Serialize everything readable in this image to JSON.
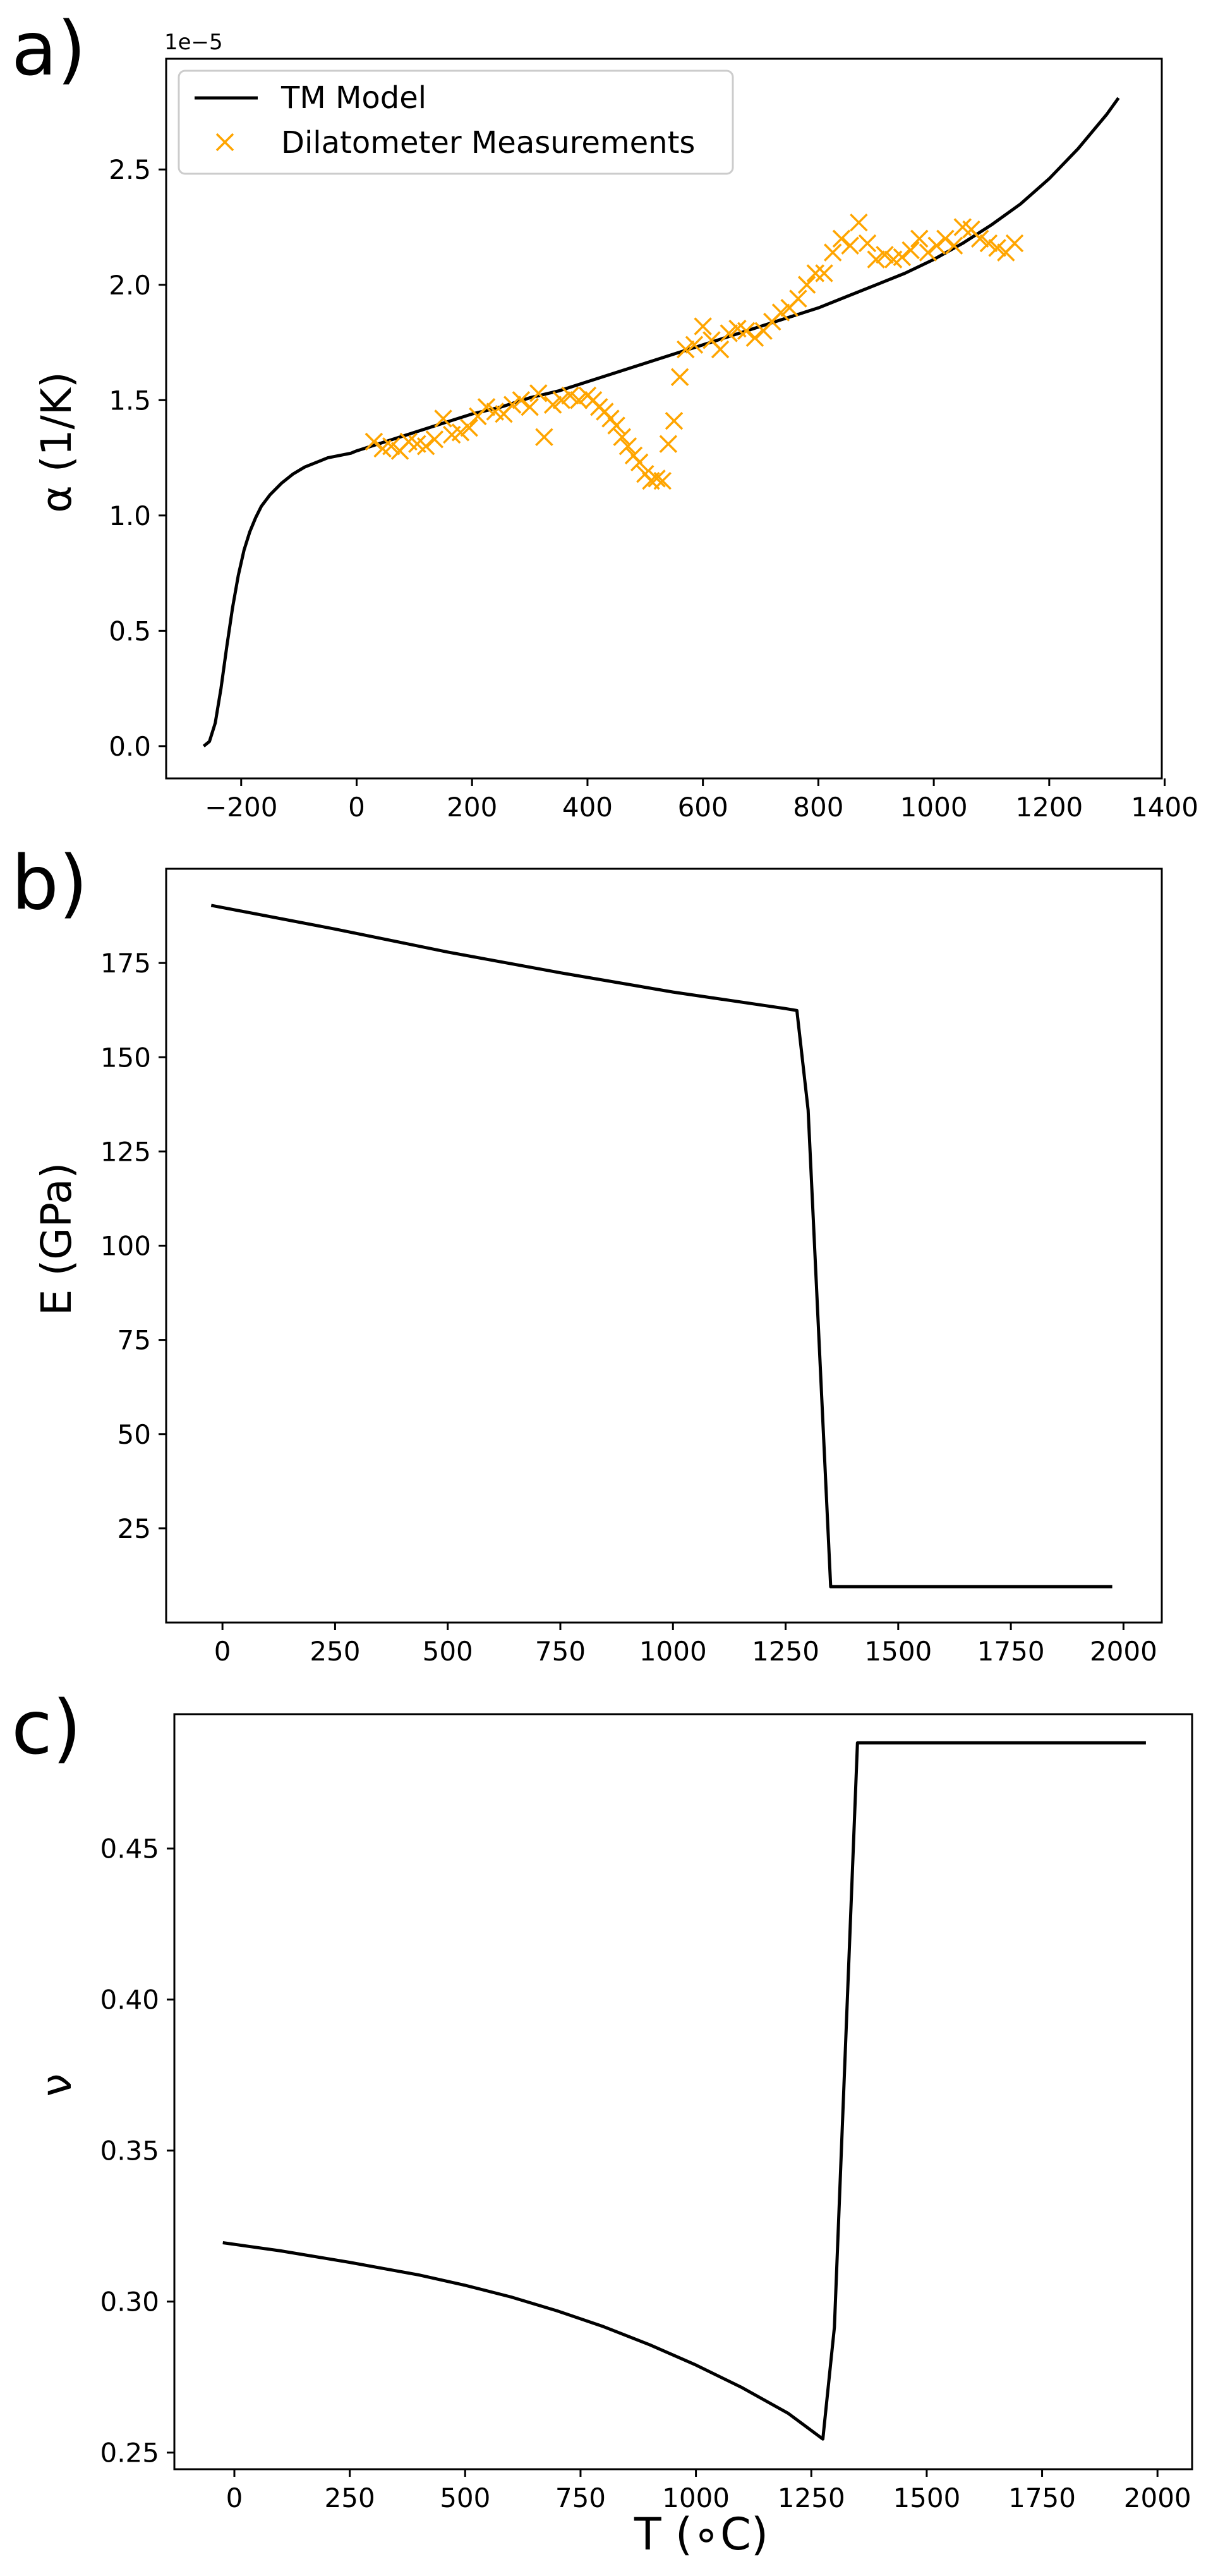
{
  "colors": {
    "line": "#000000",
    "markers": "#FFA500",
    "frame": "#000000",
    "background": "#ffffff"
  },
  "chart_data": [
    {
      "type": "line",
      "panel_label": "a)",
      "ylabel": "α (1/K)",
      "xlabel": "",
      "offset_text": "1e−5",
      "grid": false,
      "legend_location": "upper-left",
      "xlim": [
        -330,
        1395
      ],
      "ylim": [
        -0.14,
        2.98
      ],
      "xticks": [
        -200,
        0,
        200,
        400,
        600,
        800,
        1000,
        1200,
        1400
      ],
      "xtick_labels": [
        "−200",
        "0",
        "200",
        "400",
        "600",
        "800",
        "1000",
        "1200",
        "1400"
      ],
      "yticks": [
        0.0,
        0.5,
        1.0,
        1.5,
        2.0,
        2.5
      ],
      "ytick_labels": [
        "0.0",
        "0.5",
        "1.0",
        "1.5",
        "2.0",
        "2.5"
      ],
      "series": [
        {
          "name": "TM Model",
          "kind": "line",
          "x": [
            -265,
            -255,
            -245,
            -235,
            -225,
            -215,
            -205,
            -195,
            -185,
            -175,
            -165,
            -150,
            -130,
            -110,
            -90,
            -70,
            -50,
            -30,
            -10,
            0,
            50,
            100,
            150,
            200,
            250,
            300,
            350,
            400,
            450,
            500,
            550,
            600,
            650,
            700,
            750,
            800,
            850,
            900,
            950,
            1000,
            1050,
            1100,
            1150,
            1200,
            1250,
            1300,
            1320
          ],
          "y": [
            0.0,
            0.02,
            0.1,
            0.25,
            0.43,
            0.6,
            0.74,
            0.85,
            0.93,
            0.99,
            1.04,
            1.09,
            1.14,
            1.18,
            1.21,
            1.23,
            1.25,
            1.26,
            1.27,
            1.28,
            1.32,
            1.36,
            1.4,
            1.44,
            1.47,
            1.51,
            1.54,
            1.58,
            1.62,
            1.66,
            1.7,
            1.74,
            1.78,
            1.82,
            1.86,
            1.9,
            1.95,
            2.0,
            2.05,
            2.11,
            2.18,
            2.26,
            2.35,
            2.46,
            2.59,
            2.74,
            2.81
          ]
        },
        {
          "name": "Dilatometer Measurements",
          "kind": "scatter",
          "x": [
            30,
            45,
            60,
            75,
            90,
            105,
            120,
            135,
            150,
            165,
            180,
            195,
            210,
            225,
            240,
            255,
            270,
            285,
            300,
            315,
            325,
            340,
            355,
            370,
            385,
            400,
            410,
            420,
            430,
            440,
            450,
            460,
            470,
            480,
            490,
            500,
            510,
            520,
            530,
            540,
            550,
            560,
            570,
            585,
            600,
            615,
            630,
            645,
            660,
            675,
            690,
            705,
            720,
            735,
            750,
            765,
            780,
            795,
            810,
            825,
            840,
            855,
            870,
            885,
            900,
            915,
            930,
            945,
            960,
            975,
            990,
            1005,
            1020,
            1035,
            1050,
            1065,
            1080,
            1095,
            1110,
            1125,
            1140
          ],
          "y": [
            1.32,
            1.29,
            1.3,
            1.28,
            1.32,
            1.31,
            1.3,
            1.33,
            1.42,
            1.35,
            1.36,
            1.38,
            1.43,
            1.47,
            1.45,
            1.44,
            1.48,
            1.5,
            1.47,
            1.53,
            1.34,
            1.48,
            1.5,
            1.52,
            1.5,
            1.52,
            1.5,
            1.47,
            1.45,
            1.42,
            1.39,
            1.34,
            1.3,
            1.26,
            1.23,
            1.18,
            1.15,
            1.16,
            1.15,
            1.31,
            1.41,
            1.6,
            1.72,
            1.74,
            1.82,
            1.76,
            1.72,
            1.79,
            1.81,
            1.8,
            1.77,
            1.8,
            1.84,
            1.88,
            1.9,
            1.94,
            2.0,
            2.05,
            2.05,
            2.14,
            2.2,
            2.17,
            2.27,
            2.18,
            2.11,
            2.13,
            2.11,
            2.12,
            2.15,
            2.2,
            2.14,
            2.17,
            2.2,
            2.17,
            2.25,
            2.24,
            2.2,
            2.18,
            2.16,
            2.14,
            2.18
          ]
        }
      ]
    },
    {
      "type": "line",
      "panel_label": "b)",
      "ylabel": "E (GPa)",
      "xlabel": "",
      "grid": false,
      "xlim": [
        -125,
        2085
      ],
      "ylim": [
        0,
        200
      ],
      "xticks": [
        0,
        250,
        500,
        750,
        1000,
        1250,
        1500,
        1750,
        2000
      ],
      "xtick_labels": [
        "0",
        "250",
        "500",
        "750",
        "1000",
        "1250",
        "1500",
        "1750",
        "2000"
      ],
      "yticks": [
        25,
        50,
        75,
        100,
        125,
        150,
        175
      ],
      "ytick_labels": [
        "25",
        "50",
        "75",
        "100",
        "125",
        "150",
        "175"
      ],
      "series": [
        {
          "kind": "line",
          "x": [
            -25,
            250,
            500,
            750,
            1000,
            1250,
            1275,
            1300,
            1350,
            1975
          ],
          "y": [
            190.3,
            184.0,
            177.9,
            172.4,
            167.3,
            162.9,
            162.4,
            136.0,
            9.5,
            9.5
          ]
        }
      ]
    },
    {
      "type": "line",
      "panel_label": "c)",
      "ylabel": "ν",
      "xlabel": "T (∘C)",
      "grid": false,
      "xlim": [
        -130,
        2075
      ],
      "ylim": [
        0.2445,
        0.4945
      ],
      "xticks": [
        0,
        250,
        500,
        750,
        1000,
        1250,
        1500,
        1750,
        2000
      ],
      "xtick_labels": [
        "0",
        "250",
        "500",
        "750",
        "1000",
        "1250",
        "1500",
        "1750",
        "2000"
      ],
      "yticks": [
        0.25,
        0.3,
        0.35,
        0.4,
        0.45
      ],
      "ytick_labels": [
        "0.25",
        "0.30",
        "0.35",
        "0.40",
        "0.45"
      ],
      "series": [
        {
          "kind": "line",
          "x": [
            -25,
            100,
            250,
            400,
            500,
            600,
            700,
            800,
            900,
            1000,
            1100,
            1200,
            1275,
            1300,
            1350,
            1975
          ],
          "y": [
            0.3195,
            0.3168,
            0.313,
            0.3088,
            0.3054,
            0.3015,
            0.2969,
            0.2917,
            0.2857,
            0.279,
            0.2715,
            0.263,
            0.2545,
            0.2915,
            0.485,
            0.485
          ]
        }
      ]
    }
  ]
}
